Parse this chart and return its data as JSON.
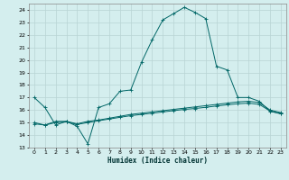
{
  "xlabel": "Humidex (Indice chaleur)",
  "bg_color": "#d4eeee",
  "grid_color": "#b8d4d4",
  "line_color": "#006666",
  "xlim": [
    -0.5,
    23.5
  ],
  "ylim": [
    13.0,
    24.5
  ],
  "yticks": [
    13,
    14,
    15,
    16,
    17,
    18,
    19,
    20,
    21,
    22,
    23,
    24
  ],
  "xticks": [
    0,
    1,
    2,
    3,
    4,
    5,
    6,
    7,
    8,
    9,
    10,
    11,
    12,
    13,
    14,
    15,
    16,
    17,
    18,
    19,
    20,
    21,
    22,
    23
  ],
  "series1_x": [
    0,
    1,
    2,
    3,
    4,
    5,
    6,
    7,
    8,
    9,
    10,
    11,
    12,
    13,
    14,
    15,
    16,
    17,
    18,
    19,
    20,
    21,
    22,
    23
  ],
  "series1_y": [
    17.0,
    16.2,
    14.8,
    15.1,
    14.7,
    13.3,
    16.2,
    16.5,
    17.5,
    17.6,
    19.8,
    21.6,
    23.2,
    23.7,
    24.2,
    23.8,
    23.3,
    19.5,
    19.2,
    17.0,
    17.0,
    16.7,
    15.9,
    15.7
  ],
  "series2_x": [
    0,
    1,
    2,
    3,
    4,
    5,
    6,
    7,
    8,
    9,
    10,
    11,
    12,
    13,
    14,
    15,
    16,
    17,
    18,
    19,
    20,
    21,
    22,
    23
  ],
  "series2_y": [
    15.0,
    14.8,
    15.1,
    15.1,
    14.9,
    15.1,
    15.2,
    15.35,
    15.5,
    15.65,
    15.75,
    15.85,
    15.95,
    16.05,
    16.15,
    16.25,
    16.35,
    16.45,
    16.55,
    16.65,
    16.7,
    16.6,
    16.0,
    15.8
  ],
  "series3_x": [
    0,
    1,
    2,
    3,
    4,
    5,
    6,
    7,
    8,
    9,
    10,
    11,
    12,
    13,
    14,
    15,
    16,
    17,
    18,
    19,
    20,
    21,
    22,
    23
  ],
  "series3_y": [
    14.9,
    14.8,
    15.0,
    15.05,
    14.85,
    15.0,
    15.15,
    15.28,
    15.42,
    15.55,
    15.65,
    15.75,
    15.85,
    15.95,
    16.05,
    16.12,
    16.22,
    16.32,
    16.42,
    16.5,
    16.55,
    16.45,
    15.92,
    15.72
  ]
}
